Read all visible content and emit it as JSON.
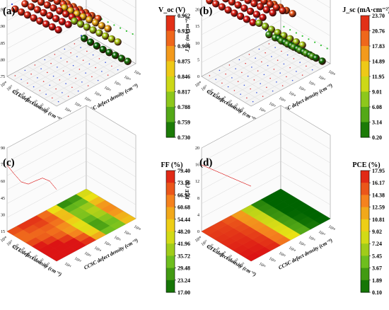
{
  "chart_data": [
    {
      "panel": "(a)",
      "type": "scatter",
      "colorbar_title": "V_oc (V)",
      "colorbar_ticks": [
        "0.962",
        "0.933",
        "0.904",
        "0.875",
        "0.846",
        "0.817",
        "0.788",
        "0.759",
        "0.730"
      ],
      "z_ticks": [
        "1.00",
        "0.95",
        "0.90",
        "0.85",
        "0.80",
        "0.75"
      ],
      "z_label": "V_oc (V)",
      "x_label": "CTL defect density (cm⁻³)",
      "y_label": "CCSC defect density (cm⁻³)",
      "x_ticks": [
        "10¹¹",
        "10¹²",
        "10¹³",
        "10¹⁴",
        "10¹⁵",
        "10¹⁶",
        "10¹⁷",
        "10¹⁸"
      ],
      "y_ticks": [
        "10¹¹",
        "10¹²",
        "10¹³",
        "10¹⁴",
        "10¹⁵",
        "10¹⁶",
        "10¹⁷",
        "10¹⁸"
      ],
      "zlim": [
        0.73,
        1.0
      ],
      "z_by_ccsc": [
        0.962,
        0.962,
        0.96,
        0.955,
        0.93,
        0.88,
        0.82,
        0.74
      ],
      "ctl_slope": 0.004
    },
    {
      "panel": "(b)",
      "type": "scatter",
      "colorbar_title": "J_sc (mA·cm⁻²)",
      "colorbar_ticks": [
        "23.70",
        "20.76",
        "17.83",
        "14.89",
        "11.95",
        "9.01",
        "6.08",
        "3.14",
        "0.20"
      ],
      "z_ticks": [
        "25",
        "20",
        "15",
        "10",
        "5",
        "0"
      ],
      "z_label": "J_sc (mA·cm⁻²)",
      "x_label": "CTL defect density (cm⁻³)",
      "y_label": "CCSC defect density (cm⁻³)",
      "x_ticks": [
        "10¹¹",
        "10¹²",
        "10¹³",
        "10¹⁴",
        "10¹⁵",
        "10¹⁶",
        "10¹⁷",
        "10¹⁸"
      ],
      "y_ticks": [
        "10¹¹",
        "10¹²",
        "10¹³",
        "10¹⁴",
        "10¹⁵",
        "10¹⁶",
        "10¹⁷",
        "10¹⁸"
      ],
      "zlim": [
        0,
        25
      ],
      "z_by_ccsc": [
        23.7,
        23.6,
        23.4,
        22.5,
        20.0,
        9.0,
        4.0,
        1.0
      ],
      "ctl_slope": 0.3
    },
    {
      "panel": "(c)",
      "type": "area",
      "colorbar_title": "FF (%)",
      "colorbar_ticks": [
        "79.40",
        "73.16",
        "66.92",
        "60.68",
        "54.44",
        "48.20",
        "41.96",
        "35.72",
        "29.48",
        "23.24",
        "17.00"
      ],
      "z_ticks": [
        "90",
        "75",
        "60",
        "45",
        "30",
        "15"
      ],
      "z_label": "FF (%)",
      "x_label": "CTL defect density (cm⁻³)",
      "y_label": "CCSC defect density (cm⁻³)",
      "x_ticks": [
        "10¹¹",
        "10¹²",
        "10¹³",
        "10¹⁴",
        "10¹⁵",
        "10¹⁶",
        "10¹⁷",
        "10¹⁸"
      ],
      "y_ticks": [
        "10¹¹",
        "10¹²",
        "10¹³",
        "10¹⁴",
        "10¹⁵",
        "10¹⁶",
        "10¹⁷",
        "10¹⁸"
      ],
      "zlim": [
        15,
        90
      ],
      "z_by_ccsc": [
        79.4,
        79.0,
        77.0,
        70.0,
        55.0,
        35.0,
        40.0,
        60.0
      ],
      "ctl_slope": 1.2
    },
    {
      "panel": "(d)",
      "type": "area",
      "colorbar_title": "PCE (%)",
      "colorbar_ticks": [
        "17.95",
        "16.17",
        "14.38",
        "12.59",
        "10.81",
        "9.02",
        "7.24",
        "5.45",
        "3.67",
        "1.89",
        "0.10"
      ],
      "z_ticks": [
        "20",
        "16",
        "12",
        "8",
        "4",
        "0"
      ],
      "z_label": "PCE (%)",
      "x_label": "CTL defect density (cm⁻³)",
      "y_label": "CCSC defect density (cm⁻³)",
      "x_ticks": [
        "10¹¹",
        "10¹²",
        "10¹³",
        "10¹⁴",
        "10¹⁵",
        "10¹⁶",
        "10¹⁷",
        "10¹⁸"
      ],
      "y_ticks": [
        "10¹¹",
        "10¹²",
        "10¹³",
        "10¹⁴",
        "10¹⁵",
        "10¹⁶",
        "10¹⁷",
        "10¹⁸"
      ],
      "zlim": [
        0,
        20
      ],
      "z_by_ccsc": [
        17.95,
        17.8,
        17.0,
        14.0,
        9.0,
        3.5,
        1.0,
        0.2
      ],
      "ctl_slope": 0.25
    }
  ]
}
